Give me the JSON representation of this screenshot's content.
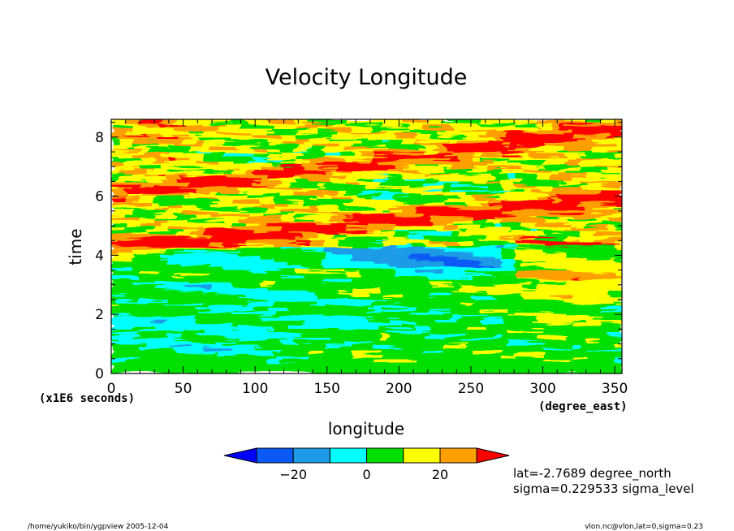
{
  "chart_data": {
    "type": "heatmap",
    "title": "Velocity Longitude",
    "xlabel": "longitude",
    "xunits": "(degree_east)",
    "ylabel": "time",
    "yunits": "(x1E6 seconds)",
    "xlim": [
      0,
      355
    ],
    "ylim": [
      0,
      8.6
    ],
    "x_ticks": [
      "0",
      "50",
      "100",
      "150",
      "200",
      "250",
      "300",
      "350"
    ],
    "y_ticks": [
      "0",
      "2",
      "4",
      "6",
      "8"
    ],
    "colorbar": {
      "levels": [
        -30,
        -20,
        -10,
        0,
        10,
        20,
        30
      ],
      "tick_labels": [
        "−20",
        "0",
        "20"
      ],
      "colors": [
        "#0000ff",
        "#0a5af5",
        "#1e9be6",
        "#00ffff",
        "#00e000",
        "#ffff00",
        "#ffa000",
        "#ff0000"
      ]
    },
    "bands": [
      {
        "label": "upper red band",
        "t_at_0": 6.0,
        "t_at_355": 8.3,
        "value": 30
      },
      {
        "label": "lower red band",
        "t_at_0": 4.2,
        "t_at_355": 6.0,
        "value": 30
      }
    ],
    "regions": [
      {
        "t_range": [
          0,
          0.4
        ],
        "dominant": "cyan/green"
      },
      {
        "t_range": [
          0.4,
          3.5
        ],
        "dominant": "green/cyan"
      },
      {
        "t_range": [
          3.5,
          4.3
        ],
        "dominant": "cyan/blue"
      },
      {
        "t_range": [
          4.3,
          8.6
        ],
        "dominant": "red/orange/yellow with blue patches"
      }
    ]
  },
  "annotations": {
    "lat": "lat=-2.7689 degree_north",
    "sigma": "sigma=0.229533 sigma_level",
    "footer_left": "/home/yukiko/bin/ygpview  2005-12-04",
    "footer_right": "vlon.nc@vlon,lat=0,sigma=0.23"
  }
}
